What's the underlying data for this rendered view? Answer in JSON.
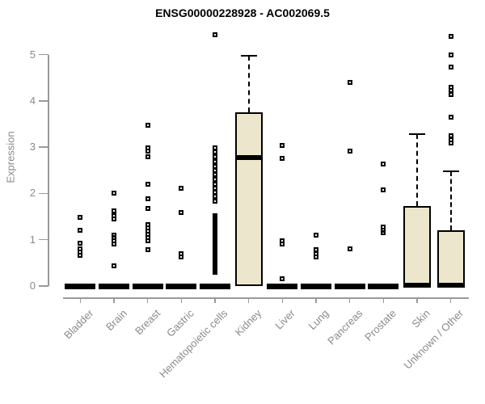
{
  "chart_data": {
    "type": "boxplot",
    "title": "ENSG00000228928 - AC002069.5",
    "ylabel": "Expression",
    "ylim": [
      0,
      5.5
    ],
    "yticks": [
      0,
      1,
      2,
      3,
      4,
      5
    ],
    "grid": false,
    "legend": "none",
    "categories": [
      "Bladder",
      "Brain",
      "Breast",
      "Gastric",
      "Hematopoietic cells",
      "Kidney",
      "Liver",
      "Lung",
      "Pancreas",
      "Prostate",
      "Skin",
      "Unknown / Other"
    ],
    "colors": {
      "box_fill": "#ECE6CC",
      "box_border": "#000000",
      "axis": "#999999",
      "tick_label": "#8a8a8a",
      "title": "#000000"
    },
    "series": [
      {
        "category": "Bladder",
        "q1": 0,
        "median": 0,
        "q3": 0,
        "whisker_low": 0,
        "whisker_high": 0,
        "outliers": [
          1.48,
          1.2,
          0.93,
          0.8,
          0.73,
          0.67
        ]
      },
      {
        "category": "Brain",
        "q1": 0,
        "median": 0,
        "q3": 0,
        "whisker_low": 0,
        "whisker_high": 0,
        "outliers": [
          2.0,
          1.63,
          1.51,
          1.44,
          1.1,
          1.04,
          0.97,
          0.91,
          0.44
        ]
      },
      {
        "category": "Breast",
        "q1": 0,
        "median": 0,
        "q3": 0,
        "whisker_low": 0,
        "whisker_high": 0,
        "outliers": [
          3.48,
          2.99,
          2.92,
          2.79,
          2.2,
          1.88,
          1.67,
          1.33,
          1.26,
          1.19,
          1.12,
          1.05,
          0.98,
          0.78
        ]
      },
      {
        "category": "Gastric",
        "q1": 0,
        "median": 0,
        "q3": 0,
        "whisker_low": 0,
        "whisker_high": 0,
        "outliers": [
          2.11,
          1.59,
          0.69,
          0.62
        ]
      },
      {
        "category": "Hematopoietic cells",
        "q1": 0,
        "median": 0,
        "q3": 0,
        "whisker_low": 0,
        "whisker_high": 0,
        "outliers": [
          5.43,
          2.98,
          2.9,
          2.79,
          2.69,
          2.58,
          2.5,
          2.4,
          2.3,
          2.2,
          2.11,
          2.02,
          1.93,
          1.84,
          1.52,
          1.5,
          1.47,
          1.45,
          1.42,
          1.4,
          1.37,
          1.35,
          1.32,
          1.3,
          1.27,
          1.25,
          1.22,
          1.2,
          1.17,
          1.15,
          1.12,
          1.1,
          1.07,
          1.05,
          1.02,
          1.0,
          0.97,
          0.95,
          0.92,
          0.9,
          0.87,
          0.85,
          0.82,
          0.8,
          0.77,
          0.75,
          0.72,
          0.7,
          0.67,
          0.65,
          0.62,
          0.6,
          0.57,
          0.55,
          0.52,
          0.5,
          0.47,
          0.45,
          0.42,
          0.4,
          0.37,
          0.35,
          0.32,
          0.3
        ]
      },
      {
        "category": "Kidney",
        "q1": 0,
        "median": 2.77,
        "q3": 3.75,
        "whisker_low": 0,
        "whisker_high": 4.98,
        "outliers": []
      },
      {
        "category": "Liver",
        "q1": 0,
        "median": 0,
        "q3": 0,
        "whisker_low": 0,
        "whisker_high": 0,
        "outliers": [
          3.04,
          2.76,
          0.97,
          0.9,
          0.16
        ]
      },
      {
        "category": "Lung",
        "q1": 0,
        "median": 0,
        "q3": 0,
        "whisker_low": 0,
        "whisker_high": 0,
        "outliers": [
          1.1,
          0.79,
          0.7,
          0.62
        ]
      },
      {
        "category": "Pancreas",
        "q1": 0,
        "median": 0,
        "q3": 0,
        "whisker_low": 0,
        "whisker_high": 0,
        "outliers": [
          4.4,
          2.91,
          0.8
        ]
      },
      {
        "category": "Prostate",
        "q1": 0,
        "median": 0,
        "q3": 0,
        "whisker_low": 0,
        "whisker_high": 0,
        "outliers": [
          2.64,
          2.08,
          1.27,
          1.21,
          1.15
        ]
      },
      {
        "category": "Skin",
        "q1": 0,
        "median": 0.02,
        "q3": 1.73,
        "whisker_low": 0,
        "whisker_high": 3.28,
        "outliers": []
      },
      {
        "category": "Unknown / Other",
        "q1": 0,
        "median": 0.02,
        "q3": 1.2,
        "whisker_low": 0,
        "whisker_high": 2.48,
        "outliers": [
          5.39,
          5.0,
          4.73,
          4.3,
          4.22,
          4.14,
          3.65,
          3.24,
          3.16,
          3.09
        ]
      }
    ]
  }
}
